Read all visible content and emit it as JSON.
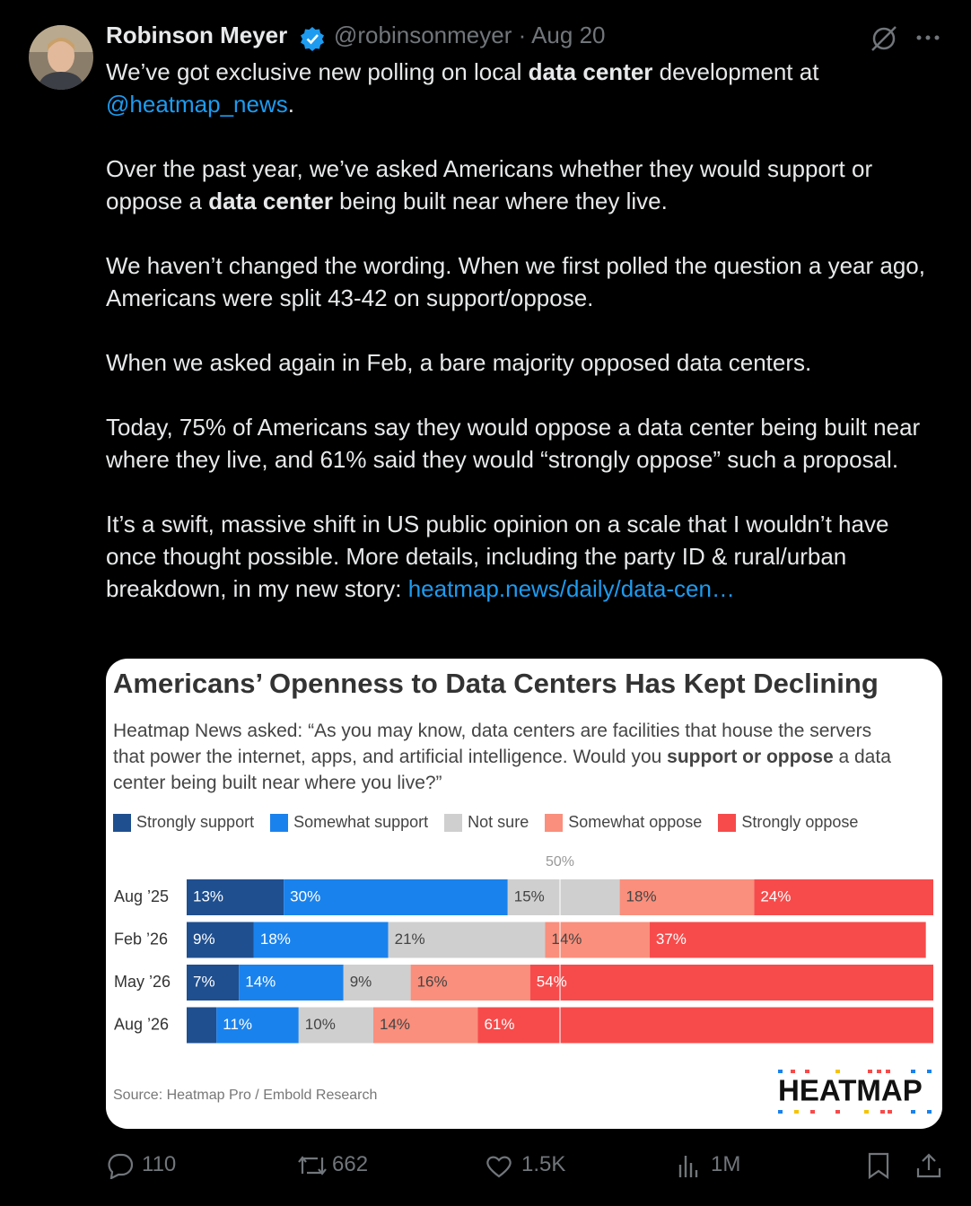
{
  "tweet": {
    "author": "Robinson Meyer",
    "handle": "@robinsonmeyer",
    "separator": "·",
    "date": "Aug 20",
    "paragraphs": [
      [
        {
          "text": "We’ve got exclusive new polling on local "
        },
        {
          "text": "data center",
          "kind": "bold"
        },
        {
          "text": " development at "
        },
        {
          "text": "@heatmap_news",
          "kind": "link"
        },
        {
          "text": "."
        }
      ],
      [
        {
          "text": "Over the past year, we’ve asked Americans whether they would support or oppose a "
        },
        {
          "text": "data center",
          "kind": "bold"
        },
        {
          "text": " being built near where they live."
        }
      ],
      [
        {
          "text": "We haven’t changed the wording. When we first polled the question a year ago, Americans were split 43-42 on support/oppose."
        }
      ],
      [
        {
          "text": "When we asked again in Feb, a bare majority opposed data centers."
        }
      ],
      [
        {
          "text": "Today, 75% of Americans say they would oppose a data center being built near where they live, and 61% said they would “strongly oppose” such a proposal."
        }
      ],
      [
        {
          "text": "It’s a swift, massive shift in US public opinion on a scale that I wouldn’t have once thought possible. More details, including the party ID & rural/urban breakdown, in my new story: "
        },
        {
          "text": "heatmap.news/daily/data-cen…",
          "kind": "link"
        }
      ]
    ],
    "stats": {
      "replies": "110",
      "reposts": "662",
      "likes": "1.5K",
      "views": "1M"
    }
  },
  "chart_data": {
    "type": "bar",
    "orientation": "horizontal",
    "stacked": true,
    "title": "Americans’ Openness to Data Centers Has Kept Declining",
    "subtitle": [
      {
        "text": "Heatmap News asked: “As you may know, data centers are facilities that house the servers that power the internet, apps, and artificial intelligence. Would you "
      },
      {
        "text": "support or oppose",
        "kind": "bold"
      },
      {
        "text": " a data center being built near where you live?”"
      }
    ],
    "categories": [
      "Aug ’25",
      "Feb ’26",
      "May ’26",
      "Aug ’26"
    ],
    "series": [
      {
        "name": "Strongly support",
        "color": "#1f4f8f",
        "label_color": "#ffffff",
        "values": [
          13,
          9,
          7,
          4
        ],
        "value_labels": [
          "13%",
          "9%",
          "7%",
          null
        ]
      },
      {
        "name": "Somewhat support",
        "color": "#1a82ec",
        "label_color": "#ffffff",
        "values": [
          30,
          18,
          14,
          11
        ],
        "value_labels": [
          "30%",
          "18%",
          "14%",
          "11%"
        ]
      },
      {
        "name": "Not sure",
        "color": "#cfcfcf",
        "label_color": "#444444",
        "values": [
          15,
          21,
          9,
          10
        ],
        "value_labels": [
          "15%",
          "21%",
          "9%",
          "10%"
        ]
      },
      {
        "name": "Somewhat oppose",
        "color": "#f98f7c",
        "label_color": "#444444",
        "values": [
          18,
          14,
          16,
          14
        ],
        "value_labels": [
          "18%",
          "14%",
          "16%",
          "14%"
        ]
      },
      {
        "name": "Strongly oppose",
        "color": "#f74b4b",
        "label_color": "#ffffff",
        "values": [
          24,
          37,
          54,
          61
        ],
        "value_labels": [
          "24%",
          "37%",
          "54%",
          "61%"
        ]
      }
    ],
    "xlim": [
      0,
      100
    ],
    "reference_line": {
      "value": 50,
      "label": "50%"
    },
    "source": "Source: Heatmap Pro / Embold Research",
    "logo": "HEATMAP"
  }
}
